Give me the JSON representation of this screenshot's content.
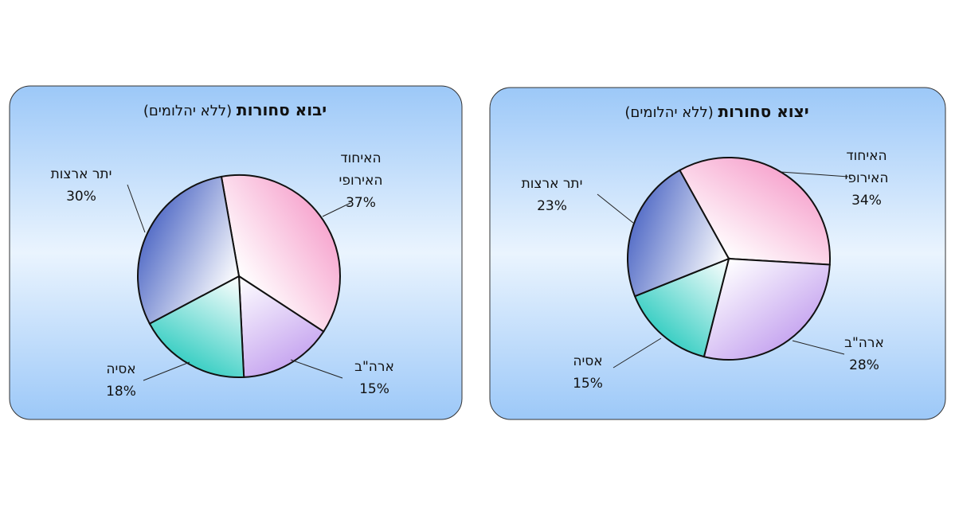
{
  "chart_data": [
    {
      "type": "pie",
      "title": "יבוא סחורות",
      "subtitle": "(ללא יהלומים)",
      "categories": [
        "האיחוד האירופי",
        "ארה\"ב",
        "אסיה",
        "יתר ארצות"
      ],
      "values": [
        37,
        15,
        18,
        30
      ],
      "value_labels": [
        "37%",
        "15%",
        "18%",
        "30%"
      ],
      "colors": [
        "#f7a8d0",
        "#c8a8f0",
        "#3ccfc4",
        "#5870c8"
      ]
    },
    {
      "type": "pie",
      "title": "יצוא סחורות",
      "subtitle": "(ללא יהלומים)",
      "categories": [
        "האיחוד האירופי",
        "ארה\"ב",
        "אסיה",
        "יתר ארצות"
      ],
      "values": [
        34,
        28,
        15,
        23
      ],
      "value_labels": [
        "34%",
        "28%",
        "15%",
        "23%"
      ],
      "colors": [
        "#f7a8d0",
        "#c8a8f0",
        "#3ccfc4",
        "#5870c8"
      ]
    }
  ]
}
